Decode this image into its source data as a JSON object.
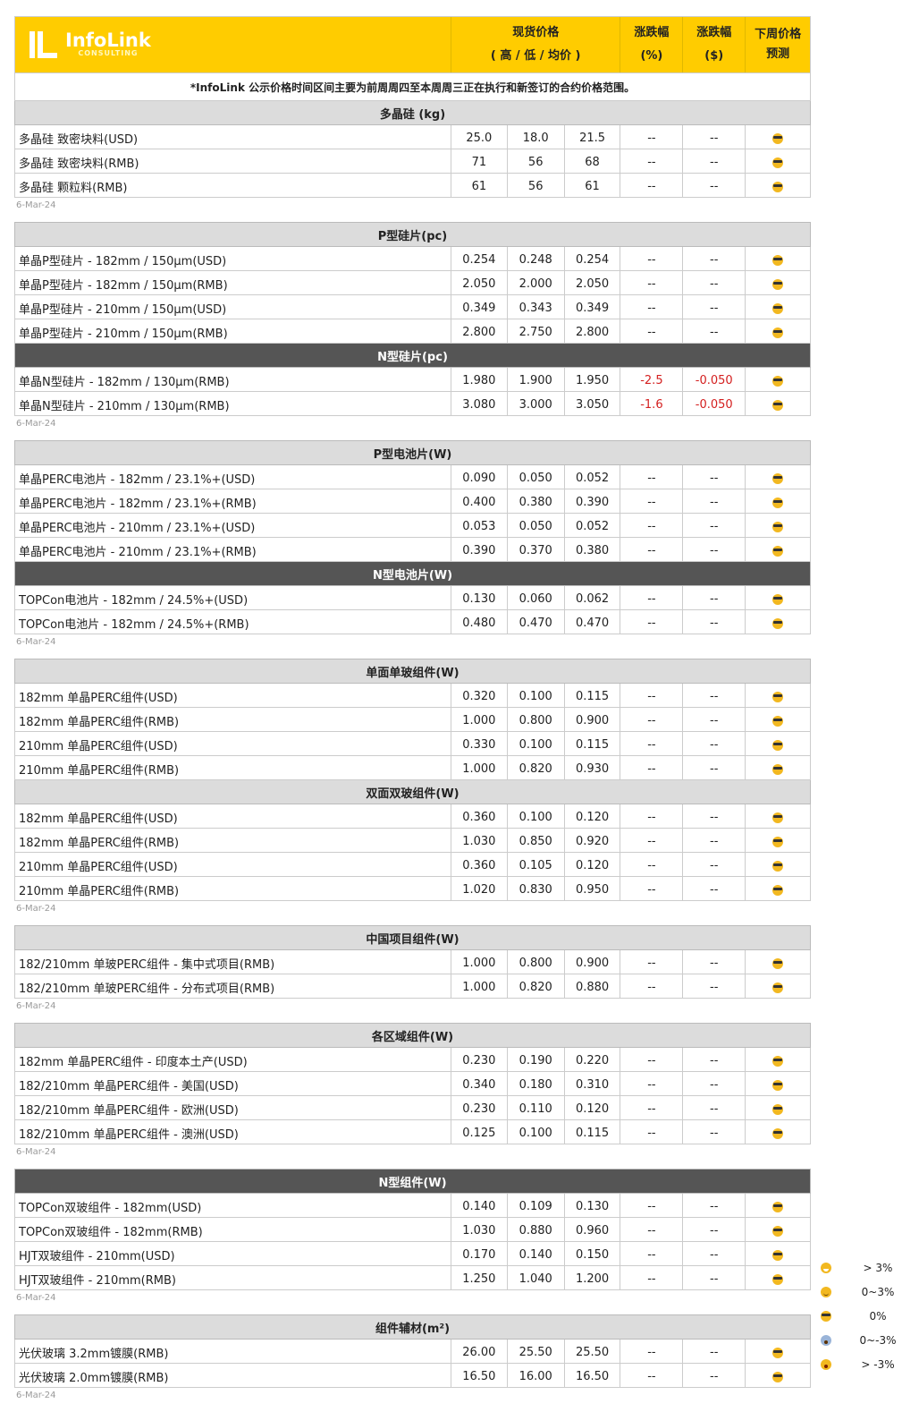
{
  "header": {
    "logo_name": "InfoLink",
    "logo_sub": "CONSULTING",
    "spot_price": "现货价格",
    "spot_sub": "( 高 / 低 / 均价 )",
    "change_pct": "涨跌幅",
    "change_pct_unit": "(%)",
    "change_usd": "涨跌幅",
    "change_usd_unit": "($)",
    "forecast": "下周价格",
    "forecast_sub": "预测"
  },
  "notice": "*InfoLink 公示价格时间区间主要为前周周四至本周周三正在执行和新签订的合约价格范围。",
  "colors": {
    "header_bg": "#ffcc00",
    "section_bg": "#dcdcdc",
    "section_dark_bg": "#555555",
    "negative": "#d42020"
  },
  "blocks": [
    {
      "date": "6-Mar-24",
      "sections": [
        {
          "title": "多晶硅 (kg)",
          "dark": false,
          "rows": [
            [
              "多晶硅 致密块料(USD)",
              "25.0",
              "18.0",
              "21.5",
              "--",
              "--"
            ],
            [
              "多晶硅 致密块料(RMB)",
              "71",
              "56",
              "68",
              "--",
              "--"
            ],
            [
              "多晶硅 颗粒料(RMB)",
              "61",
              "56",
              "61",
              "--",
              "--"
            ]
          ]
        }
      ]
    },
    {
      "date": "6-Mar-24",
      "sections": [
        {
          "title": "P型硅片(pc)",
          "dark": false,
          "rows": [
            [
              "单晶P型硅片 - 182mm / 150μm(USD)",
              "0.254",
              "0.248",
              "0.254",
              "--",
              "--"
            ],
            [
              "单晶P型硅片 - 182mm / 150μm(RMB)",
              "2.050",
              "2.000",
              "2.050",
              "--",
              "--"
            ],
            [
              "单晶P型硅片 - 210mm / 150μm(USD)",
              "0.349",
              "0.343",
              "0.349",
              "--",
              "--"
            ],
            [
              "单晶P型硅片 - 210mm / 150μm(RMB)",
              "2.800",
              "2.750",
              "2.800",
              "--",
              "--"
            ]
          ]
        },
        {
          "title": "N型硅片(pc)",
          "dark": true,
          "rows": [
            [
              "单晶N型硅片 - 182mm / 130μm(RMB)",
              "1.980",
              "1.900",
              "1.950",
              "-2.5",
              "-0.050"
            ],
            [
              "单晶N型硅片 - 210mm / 130μm(RMB)",
              "3.080",
              "3.000",
              "3.050",
              "-1.6",
              "-0.050"
            ]
          ]
        }
      ]
    },
    {
      "date": "6-Mar-24",
      "sections": [
        {
          "title": "P型电池片(W)",
          "dark": false,
          "rows": [
            [
              "单晶PERC电池片 - 182mm / 23.1%+(USD)",
              "0.090",
              "0.050",
              "0.052",
              "--",
              "--"
            ],
            [
              "单晶PERC电池片 - 182mm / 23.1%+(RMB)",
              "0.400",
              "0.380",
              "0.390",
              "--",
              "--"
            ],
            [
              "单晶PERC电池片 - 210mm / 23.1%+(USD)",
              "0.053",
              "0.050",
              "0.052",
              "--",
              "--"
            ],
            [
              "单晶PERC电池片 - 210mm / 23.1%+(RMB)",
              "0.390",
              "0.370",
              "0.380",
              "--",
              "--"
            ]
          ]
        },
        {
          "title": "N型电池片(W)",
          "dark": true,
          "rows": [
            [
              "TOPCon电池片 - 182mm / 24.5%+(USD)",
              "0.130",
              "0.060",
              "0.062",
              "--",
              "--"
            ],
            [
              "TOPCon电池片 - 182mm / 24.5%+(RMB)",
              "0.480",
              "0.470",
              "0.470",
              "--",
              "--"
            ]
          ]
        }
      ]
    },
    {
      "date": "6-Mar-24",
      "sections": [
        {
          "title": "单面单玻组件(W)",
          "dark": false,
          "rows": [
            [
              "182mm 单晶PERC组件(USD)",
              "0.320",
              "0.100",
              "0.115",
              "--",
              "--"
            ],
            [
              "182mm 单晶PERC组件(RMB)",
              "1.000",
              "0.800",
              "0.900",
              "--",
              "--"
            ],
            [
              "210mm 单晶PERC组件(USD)",
              "0.330",
              "0.100",
              "0.115",
              "--",
              "--"
            ],
            [
              "210mm 单晶PERC组件(RMB)",
              "1.000",
              "0.820",
              "0.930",
              "--",
              "--"
            ]
          ]
        },
        {
          "title": "双面双玻组件(W)",
          "dark": false,
          "rows": [
            [
              "182mm 单晶PERC组件(USD)",
              "0.360",
              "0.100",
              "0.120",
              "--",
              "--"
            ],
            [
              "182mm 单晶PERC组件(RMB)",
              "1.030",
              "0.850",
              "0.920",
              "--",
              "--"
            ],
            [
              "210mm 单晶PERC组件(USD)",
              "0.360",
              "0.105",
              "0.120",
              "--",
              "--"
            ],
            [
              "210mm 单晶PERC组件(RMB)",
              "1.020",
              "0.830",
              "0.950",
              "--",
              "--"
            ]
          ]
        }
      ]
    },
    {
      "date": "6-Mar-24",
      "sections": [
        {
          "title": "中国项目组件(W)",
          "dark": false,
          "rows": [
            [
              "182/210mm 单玻PERC组件 - 集中式项目(RMB)",
              "1.000",
              "0.800",
              "0.900",
              "--",
              "--"
            ],
            [
              "182/210mm 单玻PERC组件 - 分布式项目(RMB)",
              "1.000",
              "0.820",
              "0.880",
              "--",
              "--"
            ]
          ]
        }
      ]
    },
    {
      "date": "6-Mar-24",
      "sections": [
        {
          "title": "各区域组件(W)",
          "dark": false,
          "rows": [
            [
              "182mm 单晶PERC组件 - 印度本土产(USD)",
              "0.230",
              "0.190",
              "0.220",
              "--",
              "--"
            ],
            [
              "182/210mm 单晶PERC组件 - 美国(USD)",
              "0.340",
              "0.180",
              "0.310",
              "--",
              "--"
            ],
            [
              "182/210mm 单晶PERC组件 - 欧洲(USD)",
              "0.230",
              "0.110",
              "0.120",
              "--",
              "--"
            ],
            [
              "182/210mm 单晶PERC组件 - 澳洲(USD)",
              "0.125",
              "0.100",
              "0.115",
              "--",
              "--"
            ]
          ]
        }
      ]
    },
    {
      "date": "6-Mar-24",
      "sections": [
        {
          "title": "N型组件(W)",
          "dark": true,
          "rows": [
            [
              "TOPCon双玻组件 - 182mm(USD)",
              "0.140",
              "0.109",
              "0.130",
              "--",
              "--"
            ],
            [
              "TOPCon双玻组件 - 182mm(RMB)",
              "1.030",
              "0.880",
              "0.960",
              "--",
              "--"
            ],
            [
              "HJT双玻组件 - 210mm(USD)",
              "0.170",
              "0.140",
              "0.150",
              "--",
              "--"
            ],
            [
              "HJT双玻组件 - 210mm(RMB)",
              "1.250",
              "1.040",
              "1.200",
              "--",
              "--"
            ]
          ]
        }
      ]
    },
    {
      "date": "6-Mar-24",
      "sections": [
        {
          "title": "组件辅材(m²)",
          "dark": false,
          "rows": [
            [
              "光伏玻璃 3.2mm镀膜(RMB)",
              "26.00",
              "25.50",
              "25.50",
              "--",
              "--"
            ],
            [
              "光伏玻璃 2.0mm镀膜(RMB)",
              "16.50",
              "16.00",
              "16.50",
              "--",
              "--"
            ]
          ]
        }
      ]
    }
  ],
  "forecast_icon": "sunglasses-face-icon",
  "legend": [
    {
      "icon": "grin",
      "label": "> 3%"
    },
    {
      "icon": "smile",
      "label": "0~3%"
    },
    {
      "icon": "cool",
      "label": "0%"
    },
    {
      "icon": "scream",
      "label": "0~-3%"
    },
    {
      "icon": "shock",
      "label": "> -3%"
    }
  ]
}
